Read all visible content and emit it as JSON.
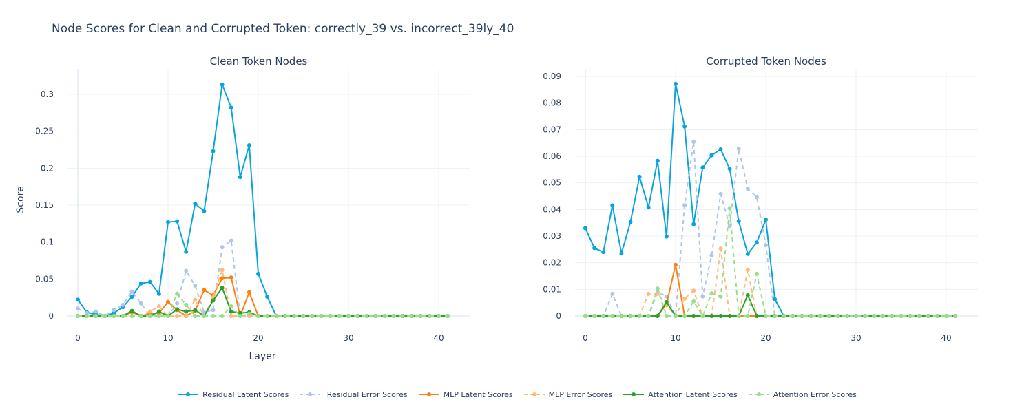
{
  "title": "Node Scores for Clean and Corrupted Token: correctly_39 vs. incorrect_39ly_40",
  "colors": {
    "residual_latent": "#0aa4dc",
    "residual_error": "#aec7e8",
    "mlp_latent": "#ff7f0e",
    "mlp_error": "#ffbb78",
    "attention_latent": "#2ca02c",
    "attention_error": "#98df8a",
    "grid": "#ebf0f8",
    "axis_text": "#2a3f5f"
  },
  "chart_data": [
    {
      "type": "line",
      "title": "Clean Token Nodes",
      "xlabel": "Layer",
      "ylabel": "Score",
      "xlim": [
        -1.5,
        43.5
      ],
      "ylim": [
        -0.017,
        0.335
      ],
      "x_ticks": [
        0,
        10,
        20,
        30,
        40
      ],
      "y_ticks": [
        0,
        0.05,
        0.1,
        0.15,
        0.2,
        0.25,
        0.3
      ],
      "y_tick_labels": [
        "0",
        "0.05",
        "0.1",
        "0.15",
        "0.2",
        "0.25",
        "0.3"
      ],
      "x": [
        0,
        1,
        2,
        3,
        4,
        5,
        6,
        7,
        8,
        9,
        10,
        11,
        12,
        13,
        14,
        15,
        16,
        17,
        18,
        19,
        20,
        21,
        22,
        23,
        24,
        25,
        26,
        27,
        28,
        29,
        30,
        31,
        32,
        33,
        34,
        35,
        36,
        37,
        38,
        39,
        40,
        41
      ],
      "series": [
        {
          "key": "residual_latent",
          "dashed": false,
          "values": [
            0.022,
            0.005,
            0.002,
            0.0,
            0.004,
            0.012,
            0.026,
            0.044,
            0.046,
            0.03,
            0.127,
            0.128,
            0.087,
            0.152,
            0.142,
            0.223,
            0.313,
            0.282,
            0.188,
            0.231,
            0.057,
            0.026,
            0,
            0,
            0,
            0,
            0,
            0,
            0,
            0,
            0,
            0,
            0,
            0,
            0,
            0,
            0,
            0,
            0,
            0,
            0,
            0
          ]
        },
        {
          "key": "residual_error",
          "dashed": true,
          "values": [
            0.01,
            0.004,
            0.006,
            0.0,
            0.008,
            0.015,
            0.033,
            0.017,
            0.0,
            0.002,
            0.0,
            0.017,
            0.061,
            0.041,
            0.005,
            0.008,
            0.093,
            0.102,
            0.0,
            0.0,
            0,
            0,
            0,
            0,
            0,
            0,
            0,
            0,
            0,
            0,
            0,
            0,
            0,
            0,
            0,
            0,
            0,
            0,
            0,
            0,
            0,
            0
          ]
        },
        {
          "key": "mlp_latent",
          "dashed": false,
          "values": [
            0.0,
            0.0,
            0.0,
            0.0,
            0.0,
            0.0,
            0.005,
            0.0,
            0.003,
            0.004,
            0.019,
            0.008,
            0.0,
            0.007,
            0.035,
            0.028,
            0.051,
            0.052,
            0.0,
            0.032,
            0.0,
            0,
            0,
            0,
            0,
            0,
            0,
            0,
            0,
            0,
            0,
            0,
            0,
            0,
            0,
            0,
            0,
            0,
            0,
            0,
            0,
            0
          ]
        },
        {
          "key": "mlp_error",
          "dashed": true,
          "values": [
            0.0,
            0.0,
            0.0,
            0.0,
            0.0,
            0.0,
            0.0,
            0.0,
            0.006,
            0.013,
            0.0,
            0.0,
            0.0,
            0.022,
            0.0,
            0.025,
            0.062,
            0.0,
            0.0,
            0.0,
            0,
            0,
            0,
            0,
            0,
            0,
            0,
            0,
            0,
            0,
            0,
            0,
            0,
            0,
            0,
            0,
            0,
            0,
            0,
            0,
            0,
            0
          ]
        },
        {
          "key": "attention_latent",
          "dashed": false,
          "values": [
            0.0,
            0.0,
            0.0,
            0.0,
            0.0,
            0.0,
            0.007,
            0.0,
            0.0,
            0.006,
            0.0,
            0.009,
            0.006,
            0.008,
            0.0,
            0.021,
            0.038,
            0.006,
            0.004,
            0.005,
            0.0,
            0,
            0,
            0,
            0,
            0,
            0,
            0,
            0,
            0,
            0,
            0,
            0,
            0,
            0,
            0,
            0,
            0,
            0,
            0,
            0,
            0
          ]
        },
        {
          "key": "attention_error",
          "dashed": true,
          "values": [
            0.0,
            0.0,
            0.0,
            0.0,
            0.0,
            0.0,
            0.0,
            0.0,
            0.0,
            0.0,
            0.0,
            0.03,
            0.015,
            0.0,
            0.0,
            0.0,
            0.0,
            0.013,
            0.0,
            0.003,
            0.0,
            0,
            0,
            0,
            0,
            0,
            0,
            0,
            0,
            0,
            0,
            0,
            0,
            0,
            0,
            0,
            0,
            0,
            0,
            0,
            0,
            0
          ]
        }
      ]
    },
    {
      "type": "line",
      "title": "Corrupted Token Nodes",
      "xlabel": "",
      "ylabel": "",
      "xlim": [
        -2.0,
        43.5
      ],
      "ylim": [
        -0.0015,
        0.093
      ],
      "x_ticks": [
        0,
        10,
        20,
        30,
        40
      ],
      "y_ticks": [
        0,
        0.01,
        0.02,
        0.03,
        0.04,
        0.05,
        0.06,
        0.07,
        0.08,
        0.09
      ],
      "y_tick_labels": [
        "0",
        "0.01",
        "0.02",
        "0.03",
        "0.04",
        "0.05",
        "0.06",
        "0.07",
        "0.08",
        "0.09"
      ],
      "x": [
        0,
        1,
        2,
        3,
        4,
        5,
        6,
        7,
        8,
        9,
        10,
        11,
        12,
        13,
        14,
        15,
        16,
        17,
        18,
        19,
        20,
        21,
        22,
        23,
        24,
        25,
        26,
        27,
        28,
        29,
        30,
        31,
        32,
        33,
        34,
        35,
        36,
        37,
        38,
        39,
        40,
        41
      ],
      "series": [
        {
          "key": "residual_latent",
          "dashed": false,
          "values": [
            0.033,
            0.0255,
            0.024,
            0.0415,
            0.0235,
            0.0353,
            0.0523,
            0.0408,
            0.0583,
            0.0298,
            0.0872,
            0.0712,
            0.0345,
            0.0558,
            0.0604,
            0.0626,
            0.0553,
            0.0356,
            0.0233,
            0.0276,
            0.0362,
            0.0063,
            0,
            0,
            0,
            0,
            0,
            0,
            0,
            0,
            0,
            0,
            0,
            0,
            0,
            0,
            0,
            0,
            0,
            0,
            0,
            0
          ]
        },
        {
          "key": "residual_error",
          "dashed": true,
          "values": [
            0.0,
            0.0,
            0.0,
            0.0083,
            0.0,
            0.0,
            0.0,
            0.0,
            0.009,
            0.0073,
            0.0,
            0.0416,
            0.0654,
            0.0073,
            0.0228,
            0.0458,
            0.0338,
            0.0628,
            0.0478,
            0.0446,
            0.0266,
            0.0,
            0,
            0,
            0,
            0,
            0,
            0,
            0,
            0,
            0,
            0,
            0,
            0,
            0,
            0,
            0,
            0,
            0,
            0,
            0,
            0
          ]
        },
        {
          "key": "mlp_latent",
          "dashed": false,
          "values": [
            0,
            0,
            0,
            0,
            0,
            0,
            0,
            0,
            0,
            0.0045,
            0.0192,
            0.0,
            0,
            0,
            0,
            0,
            0,
            0,
            0,
            0,
            0,
            0,
            0,
            0,
            0,
            0,
            0,
            0,
            0,
            0,
            0,
            0,
            0,
            0,
            0,
            0,
            0,
            0,
            0,
            0,
            0,
            0
          ]
        },
        {
          "key": "mlp_error",
          "dashed": true,
          "values": [
            0,
            0,
            0,
            0,
            0,
            0,
            0,
            0.0083,
            0.0083,
            0.004,
            0.0,
            0.0065,
            0.0095,
            0.0,
            0.0,
            0.0253,
            0.0,
            0.0,
            0.0173,
            0.0,
            0,
            0,
            0,
            0,
            0,
            0,
            0,
            0,
            0,
            0,
            0,
            0,
            0,
            0,
            0,
            0,
            0,
            0,
            0,
            0,
            0,
            0
          ]
        },
        {
          "key": "attention_latent",
          "dashed": false,
          "values": [
            0,
            0,
            0,
            0,
            0,
            0,
            0,
            0,
            0,
            0.0052,
            0.0,
            0,
            0,
            0,
            0,
            0,
            0,
            0,
            0.0078,
            0.0,
            0,
            0,
            0,
            0,
            0,
            0,
            0,
            0,
            0,
            0,
            0,
            0,
            0,
            0,
            0,
            0,
            0,
            0,
            0,
            0,
            0,
            0
          ]
        },
        {
          "key": "attention_error",
          "dashed": true,
          "values": [
            0,
            0,
            0,
            0,
            0,
            0,
            0,
            0,
            0.0103,
            0.0,
            0.0,
            0,
            0.0055,
            0.0,
            0.0085,
            0.0073,
            0.0405,
            0.0,
            0.0,
            0.0158,
            0.0,
            0,
            0,
            0,
            0,
            0,
            0,
            0,
            0,
            0,
            0,
            0,
            0,
            0,
            0,
            0,
            0,
            0,
            0,
            0,
            0,
            0
          ]
        }
      ]
    }
  ],
  "legend": [
    {
      "key": "residual_latent",
      "label": "Residual Latent Scores",
      "dashed": false
    },
    {
      "key": "residual_error",
      "label": " Residual Error Scores",
      "dashed": true
    },
    {
      "key": "mlp_latent",
      "label": "MLP Latent Scores",
      "dashed": false
    },
    {
      "key": "mlp_error",
      "label": "MLP Error Scores",
      "dashed": true
    },
    {
      "key": "attention_latent",
      "label": "Attention Latent Scores",
      "dashed": false
    },
    {
      "key": "attention_error",
      "label": "Attention Error Scores",
      "dashed": true
    }
  ]
}
